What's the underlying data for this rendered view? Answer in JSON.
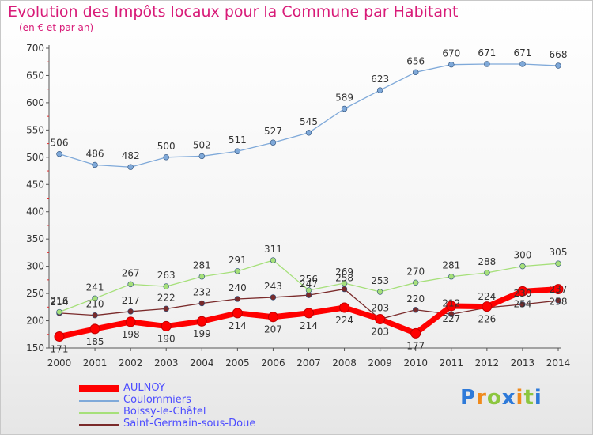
{
  "title": "Evolution des Impôts locaux pour la Commune par Habitant",
  "subtitle": "(en € et par an)",
  "logo_letters": [
    {
      "ch": "P",
      "color": "#2e7ad9"
    },
    {
      "ch": "r",
      "color": "#f08a1c"
    },
    {
      "ch": "o",
      "color": "#8cc63f"
    },
    {
      "ch": "x",
      "color": "#2e7ad9"
    },
    {
      "ch": "i",
      "color": "#f08a1c"
    },
    {
      "ch": "t",
      "color": "#8cc63f"
    },
    {
      "ch": "i",
      "color": "#2e7ad9"
    }
  ],
  "chart_data": {
    "type": "line",
    "x": [
      "2000",
      "2001",
      "2002",
      "2003",
      "2004",
      "2005",
      "2006",
      "2007",
      "2008",
      "2009",
      "2010",
      "2011",
      "2012",
      "2013",
      "2014"
    ],
    "ylim": [
      150,
      700
    ],
    "yticks": [
      150,
      200,
      250,
      300,
      350,
      400,
      450,
      500,
      550,
      600,
      650,
      700
    ],
    "grid": false,
    "legend_position": "bottom-left",
    "series": [
      {
        "name": "AULNOY",
        "color": "#ff0000",
        "values": [
          171,
          185,
          198,
          190,
          199,
          214,
          207,
          214,
          224,
          203,
          177,
          227,
          226,
          254,
          258
        ],
        "labels": [
          "171",
          "185",
          "198",
          "190",
          "199",
          "214",
          "207",
          "214",
          "224",
          "203",
          "177",
          "227",
          "226",
          "254",
          "258"
        ]
      },
      {
        "name": "Coulommiers",
        "color": "#7fa9d9",
        "values": [
          506,
          486,
          482,
          500,
          502,
          511,
          527,
          545,
          589,
          623,
          656,
          670,
          671,
          671,
          668
        ],
        "labels": [
          "506",
          "486",
          "482",
          "500",
          "502",
          "511",
          "527",
          "545",
          "589",
          "623",
          "656",
          "670",
          "671",
          "671",
          "668"
        ]
      },
      {
        "name": "Boissy-le-Châtel",
        "color": "#a6e07a",
        "values": [
          216,
          241,
          267,
          263,
          281,
          291,
          311,
          256,
          269,
          253,
          270,
          281,
          288,
          300,
          305
        ],
        "labels": [
          "216",
          "241",
          "267",
          "263",
          "281",
          "291",
          "311",
          "256",
          "269",
          "253",
          "270",
          "281",
          "288",
          "300",
          "305"
        ]
      },
      {
        "name": "Saint-Germain-sous-Doue",
        "color": "#7a2a2a",
        "values": [
          214,
          210,
          217,
          222,
          232,
          240,
          243,
          247,
          258,
          203,
          220,
          212,
          224,
          230,
          237
        ],
        "labels": [
          "214",
          "210",
          "217",
          "222",
          "232",
          "240",
          "243",
          "247",
          "258",
          "203",
          "220",
          "212",
          "224",
          "230",
          "237"
        ]
      }
    ]
  }
}
